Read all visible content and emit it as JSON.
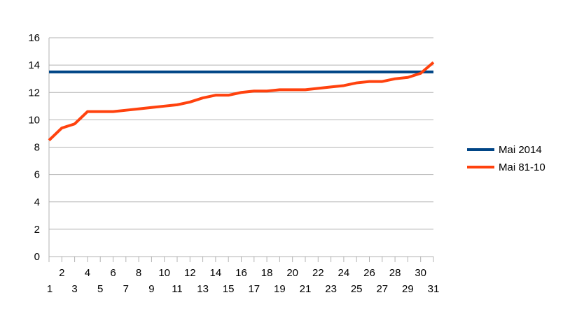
{
  "chart_data": {
    "type": "line",
    "title": "",
    "xlabel": "",
    "ylabel": "",
    "x": [
      1,
      2,
      3,
      4,
      5,
      6,
      7,
      8,
      9,
      10,
      11,
      12,
      13,
      14,
      15,
      16,
      17,
      18,
      19,
      20,
      21,
      22,
      23,
      24,
      25,
      26,
      27,
      28,
      29,
      30,
      31
    ],
    "ylim": [
      0,
      16
    ],
    "yticks": [
      0,
      2,
      4,
      6,
      8,
      10,
      12,
      14,
      16
    ],
    "grid": true,
    "legend_position": "right",
    "series": [
      {
        "name": "Mai 2014",
        "color": "#004586",
        "values": [
          13.5,
          13.5,
          13.5,
          13.5,
          13.5,
          13.5,
          13.5,
          13.5,
          13.5,
          13.5,
          13.5,
          13.5,
          13.5,
          13.5,
          13.5,
          13.5,
          13.5,
          13.5,
          13.5,
          13.5,
          13.5,
          13.5,
          13.5,
          13.5,
          13.5,
          13.5,
          13.5,
          13.5,
          13.5,
          13.5,
          13.5
        ]
      },
      {
        "name": "Mai 81-10",
        "color": "#ff420e",
        "values": [
          8.5,
          9.4,
          9.7,
          10.6,
          10.6,
          10.6,
          10.7,
          10.8,
          10.9,
          11.0,
          11.1,
          11.3,
          11.6,
          11.8,
          11.8,
          12.0,
          12.1,
          12.1,
          12.2,
          12.2,
          12.2,
          12.3,
          12.4,
          12.5,
          12.7,
          12.8,
          12.8,
          13.0,
          13.1,
          13.4,
          14.2
        ]
      }
    ]
  }
}
